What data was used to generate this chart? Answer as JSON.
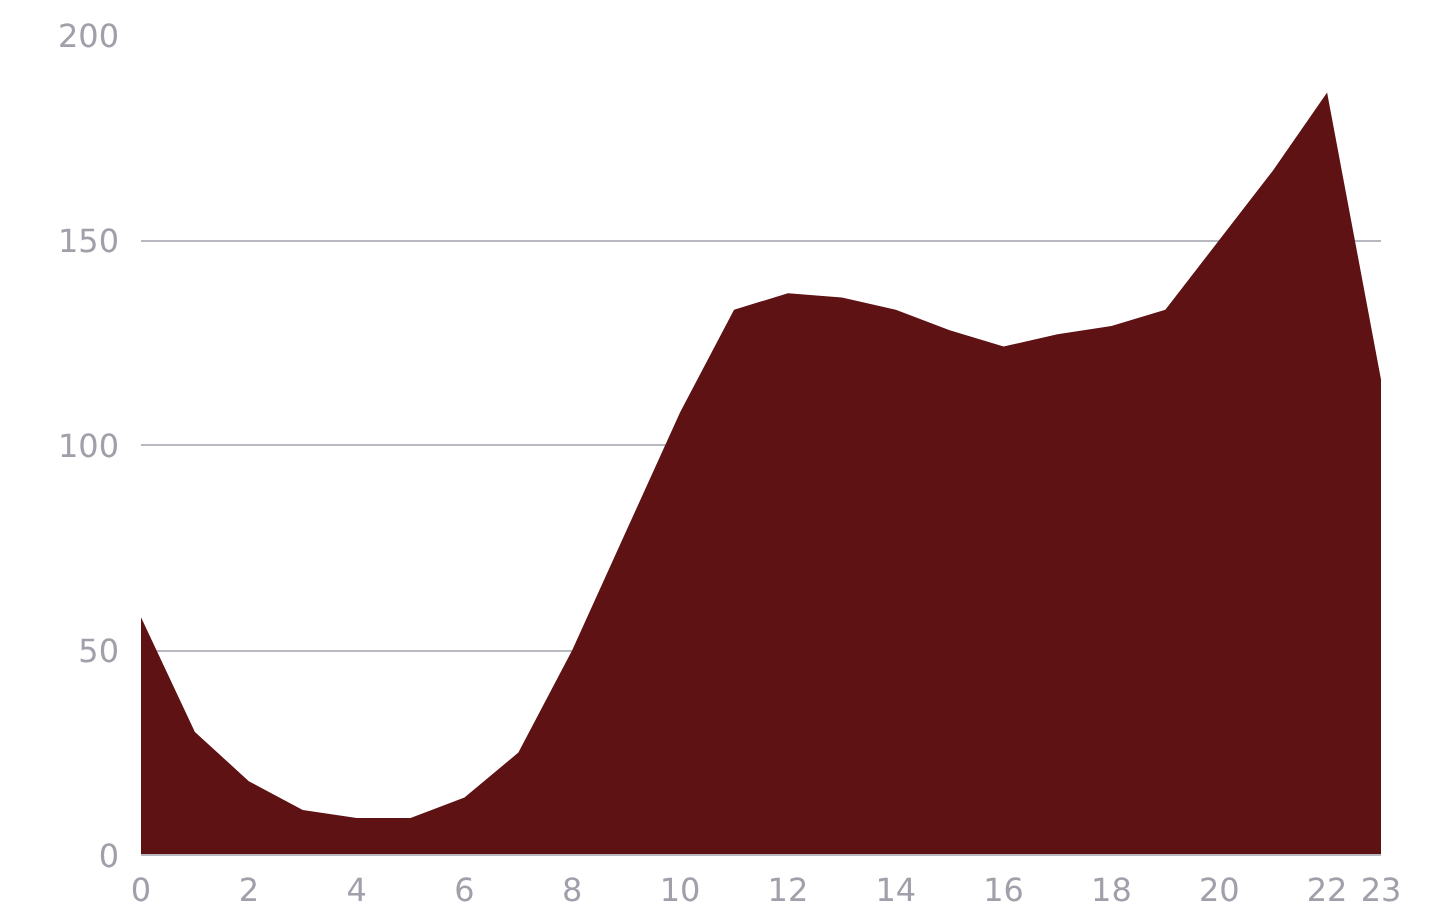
{
  "chart_data": {
    "type": "area",
    "x": [
      0,
      1,
      2,
      3,
      4,
      5,
      6,
      7,
      8,
      9,
      10,
      11,
      12,
      13,
      14,
      15,
      16,
      17,
      18,
      19,
      20,
      21,
      22,
      23
    ],
    "series": [
      {
        "color": "#5e1214",
        "values": [
          58,
          30,
          18,
          11,
          9,
          9,
          14,
          25,
          50,
          79,
          108,
          133,
          137,
          136,
          133,
          128,
          124,
          127,
          129,
          133,
          150,
          167,
          186,
          116
        ]
      }
    ],
    "xlim": [
      0,
      23
    ],
    "xticks": [
      0,
      2,
      4,
      6,
      8,
      10,
      12,
      14,
      16,
      18,
      20,
      22,
      23
    ],
    "ylim": [
      0,
      200
    ],
    "yticks": [
      0,
      50,
      100,
      150,
      200
    ],
    "grid": "y"
  }
}
